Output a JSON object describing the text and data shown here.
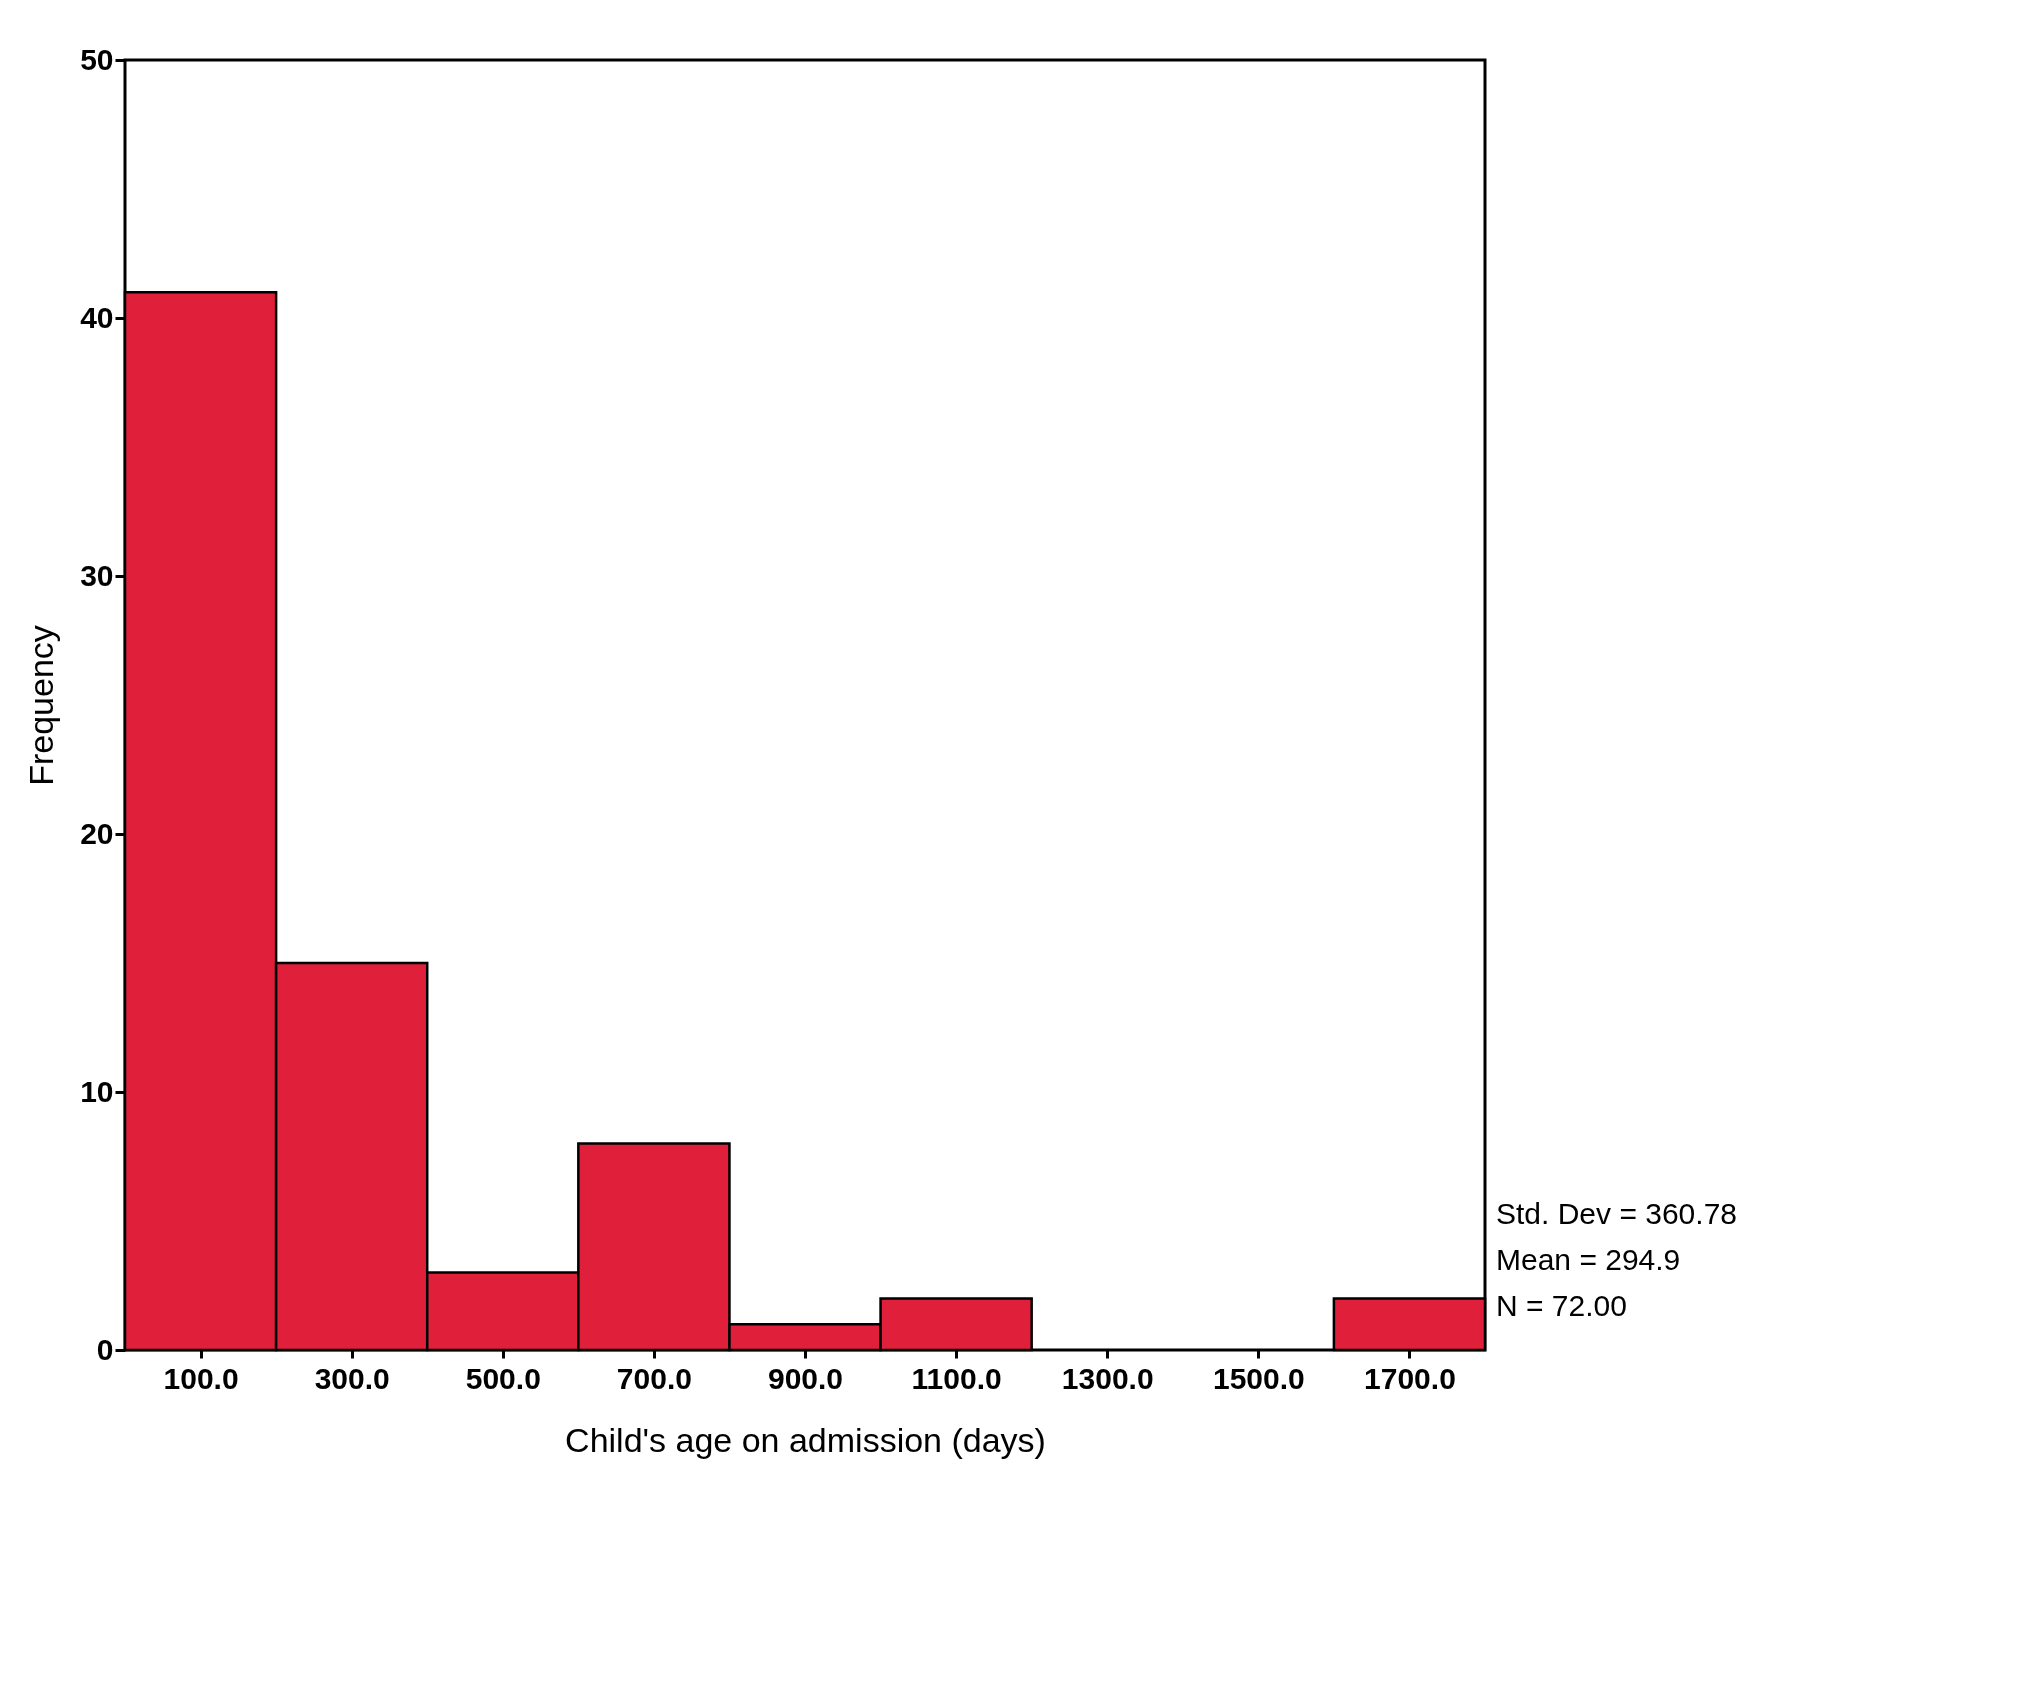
{
  "chart_data": {
    "type": "histogram",
    "bins": [
      0,
      200,
      400,
      600,
      800,
      1000,
      1200,
      1400,
      1600,
      1800
    ],
    "values": [
      41,
      15,
      3,
      8,
      1,
      2,
      0,
      0,
      2
    ],
    "color": "#e0203a",
    "xlabel": "Child's age on admission (days)",
    "ylabel": "Frequency",
    "xlim": [
      0,
      1800
    ],
    "xticks": [
      {
        "value": 100,
        "label": "100.0"
      },
      {
        "value": 300,
        "label": "300.0"
      },
      {
        "value": 500,
        "label": "500.0"
      },
      {
        "value": 700,
        "label": "700.0"
      },
      {
        "value": 900,
        "label": "900.0"
      },
      {
        "value": 1100,
        "label": "1100.0"
      },
      {
        "value": 1300,
        "label": "1300.0"
      },
      {
        "value": 1500,
        "label": "1500.0"
      },
      {
        "value": 1700,
        "label": "1700.0"
      }
    ],
    "ylim": [
      0,
      50
    ],
    "yticks": [
      0,
      10,
      20,
      30,
      40,
      50
    ],
    "grid": false,
    "annotations": [
      "Std. Dev = 360.78",
      "Mean = 294.9",
      "N = 72.00"
    ]
  }
}
